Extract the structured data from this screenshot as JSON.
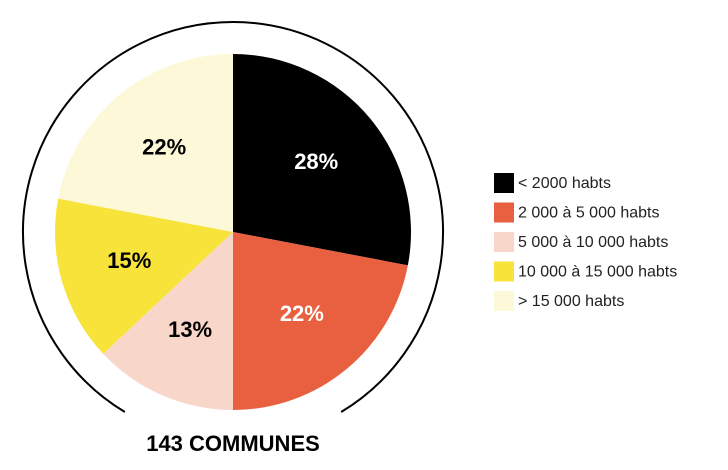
{
  "chart_data": {
    "type": "pie",
    "title": "143 COMMUNES",
    "categories": [
      "< 2000 habts",
      "2 000 à 5 000 habts",
      "5 000 à 10 000 habts",
      "10 000 à 15 000 habts",
      "> 15 000 habts"
    ],
    "values": [
      28,
      22,
      13,
      15,
      22
    ],
    "value_labels": [
      "28%",
      "22%",
      "13%",
      "15%",
      "22%"
    ],
    "colors": [
      "#000000",
      "#e8603f",
      "#f9d6ca",
      "#f8e33a",
      "#fdf8d8"
    ],
    "label_colors": [
      "#ffffff",
      "#ffffff",
      "#000000",
      "#000000",
      "#000000"
    ],
    "legend": "right"
  }
}
